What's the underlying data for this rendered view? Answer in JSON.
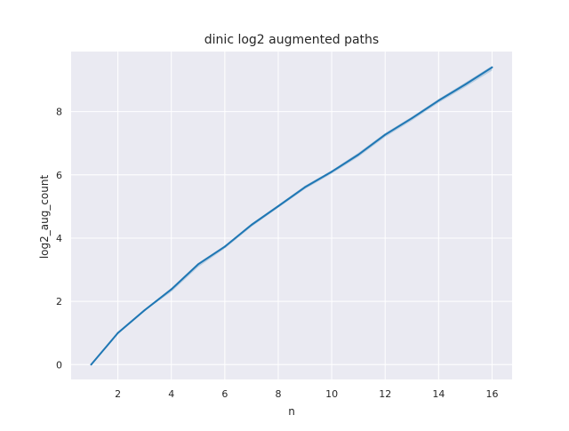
{
  "chart_data": {
    "type": "line",
    "title": "dinic log2 augmented paths",
    "xlabel": "n",
    "ylabel": "log2_aug_count",
    "xlim": [
      0.25,
      16.75
    ],
    "ylim": [
      -0.47,
      9.9
    ],
    "xticks": [
      2,
      4,
      6,
      8,
      10,
      12,
      14,
      16
    ],
    "yticks": [
      0,
      2,
      4,
      6,
      8
    ],
    "grid": true,
    "series": [
      {
        "color": "#1f77b4",
        "x": [
          1,
          2,
          3,
          4,
          5,
          6,
          7,
          8,
          9,
          10,
          11,
          12,
          13,
          14,
          15,
          16
        ],
        "y": [
          0.0,
          1.0,
          1.72,
          2.38,
          3.17,
          3.73,
          4.42,
          5.01,
          5.61,
          6.1,
          6.64,
          7.27,
          7.79,
          8.35,
          8.86,
          9.4
        ],
        "band_lower": [
          0.0,
          1.0,
          1.7,
          2.3,
          3.08,
          3.67,
          4.36,
          4.96,
          5.55,
          6.04,
          6.57,
          7.2,
          7.72,
          8.28,
          8.78,
          9.3
        ],
        "band_upper": [
          0.0,
          1.0,
          1.74,
          2.42,
          3.21,
          3.77,
          4.46,
          5.05,
          5.66,
          6.14,
          6.7,
          7.32,
          7.84,
          8.4,
          8.92,
          9.45
        ]
      }
    ]
  }
}
